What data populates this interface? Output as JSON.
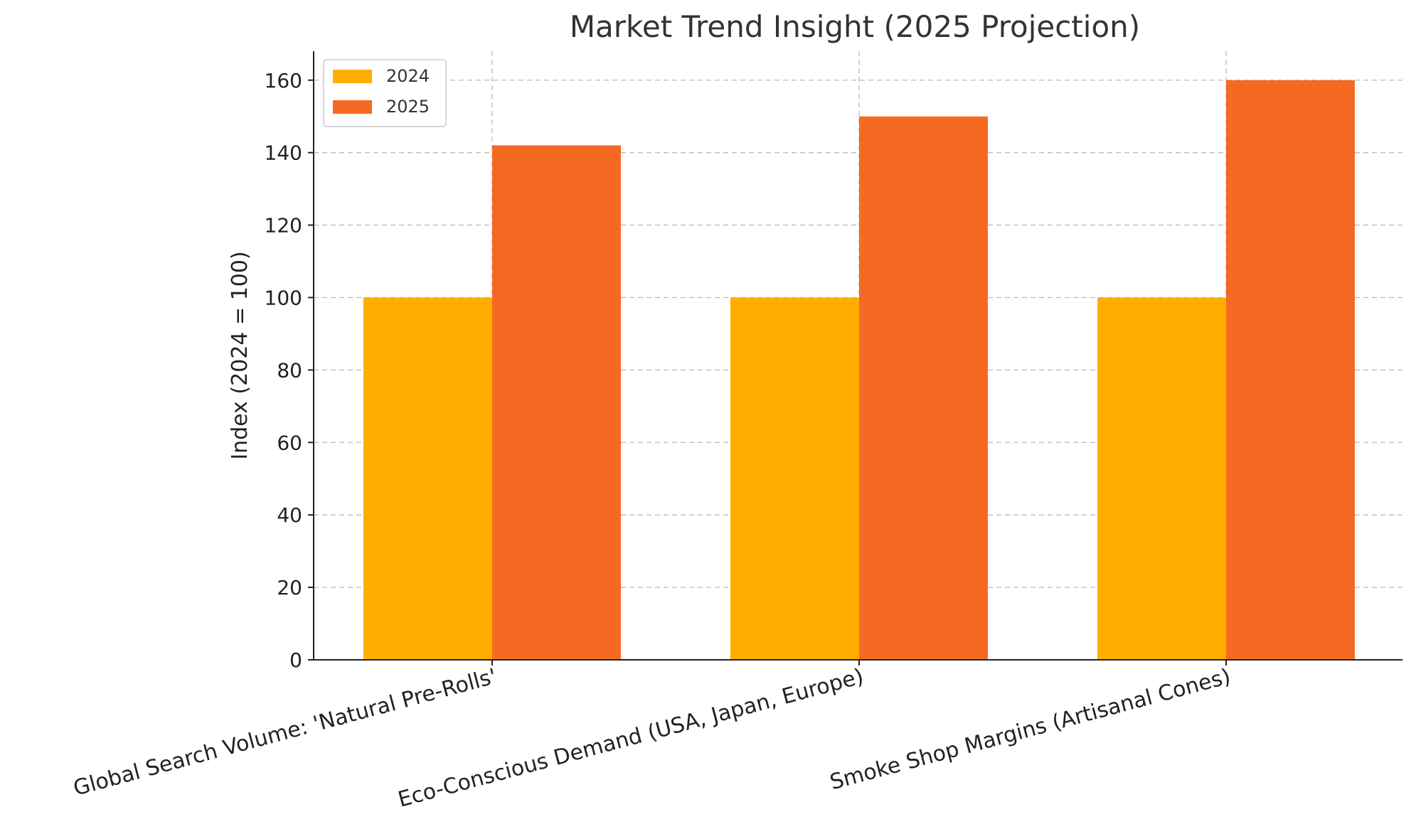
{
  "chart_data": {
    "type": "bar",
    "title": "Market Trend Insight (2025 Projection)",
    "xlabel": "",
    "ylabel": "Index (2024 = 100)",
    "categories": [
      "Global Search Volume: 'Natural Pre-Rolls'",
      "Eco-Conscious Demand (USA, Japan, Europe)",
      "Smoke Shop Margins (Artisanal Cones)"
    ],
    "series": [
      {
        "name": "2024",
        "values": [
          100,
          100,
          100
        ],
        "color": "#FFAE00"
      },
      {
        "name": "2025",
        "values": [
          142,
          150,
          160
        ],
        "color": "#F46A22"
      }
    ],
    "ylim": [
      0,
      168
    ],
    "yticks": [
      0,
      20,
      40,
      60,
      80,
      100,
      120,
      140,
      160
    ],
    "grid": true,
    "legend_position": "top-left"
  }
}
